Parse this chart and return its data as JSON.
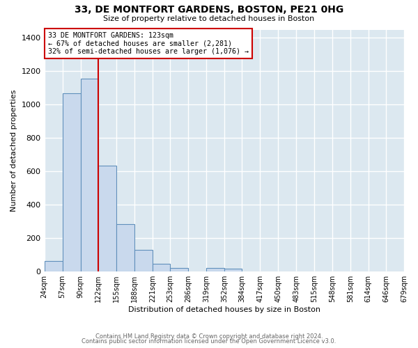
{
  "title": "33, DE MONTFORT GARDENS, BOSTON, PE21 0HG",
  "subtitle": "Size of property relative to detached houses in Boston",
  "xlabel": "Distribution of detached houses by size in Boston",
  "ylabel": "Number of detached properties",
  "bar_color": "#c9d9ed",
  "bar_edge_color": "#6090bb",
  "bg_color": "#dce8f0",
  "grid_color": "#ffffff",
  "annotation_box_edge": "#cc0000",
  "annotation_line_color": "#cc0000",
  "property_line_x": 122,
  "annotation_title": "33 DE MONTFORT GARDENS: 123sqm",
  "annotation_line1": "← 67% of detached houses are smaller (2,281)",
  "annotation_line2": "32% of semi-detached houses are larger (1,076) →",
  "bin_edges": [
    24,
    57,
    90,
    122,
    155,
    188,
    221,
    253,
    286,
    319,
    352,
    384,
    417,
    450,
    483,
    515,
    548,
    581,
    614,
    646,
    679
  ],
  "bin_heights": [
    65,
    1070,
    1155,
    635,
    285,
    130,
    48,
    20,
    0,
    20,
    18,
    0,
    0,
    0,
    0,
    0,
    0,
    0,
    0,
    0
  ],
  "ylim": [
    0,
    1450
  ],
  "yticks": [
    0,
    200,
    400,
    600,
    800,
    1000,
    1200,
    1400
  ],
  "footer_line1": "Contains HM Land Registry data © Crown copyright and database right 2024.",
  "footer_line2": "Contains public sector information licensed under the Open Government Licence v3.0."
}
